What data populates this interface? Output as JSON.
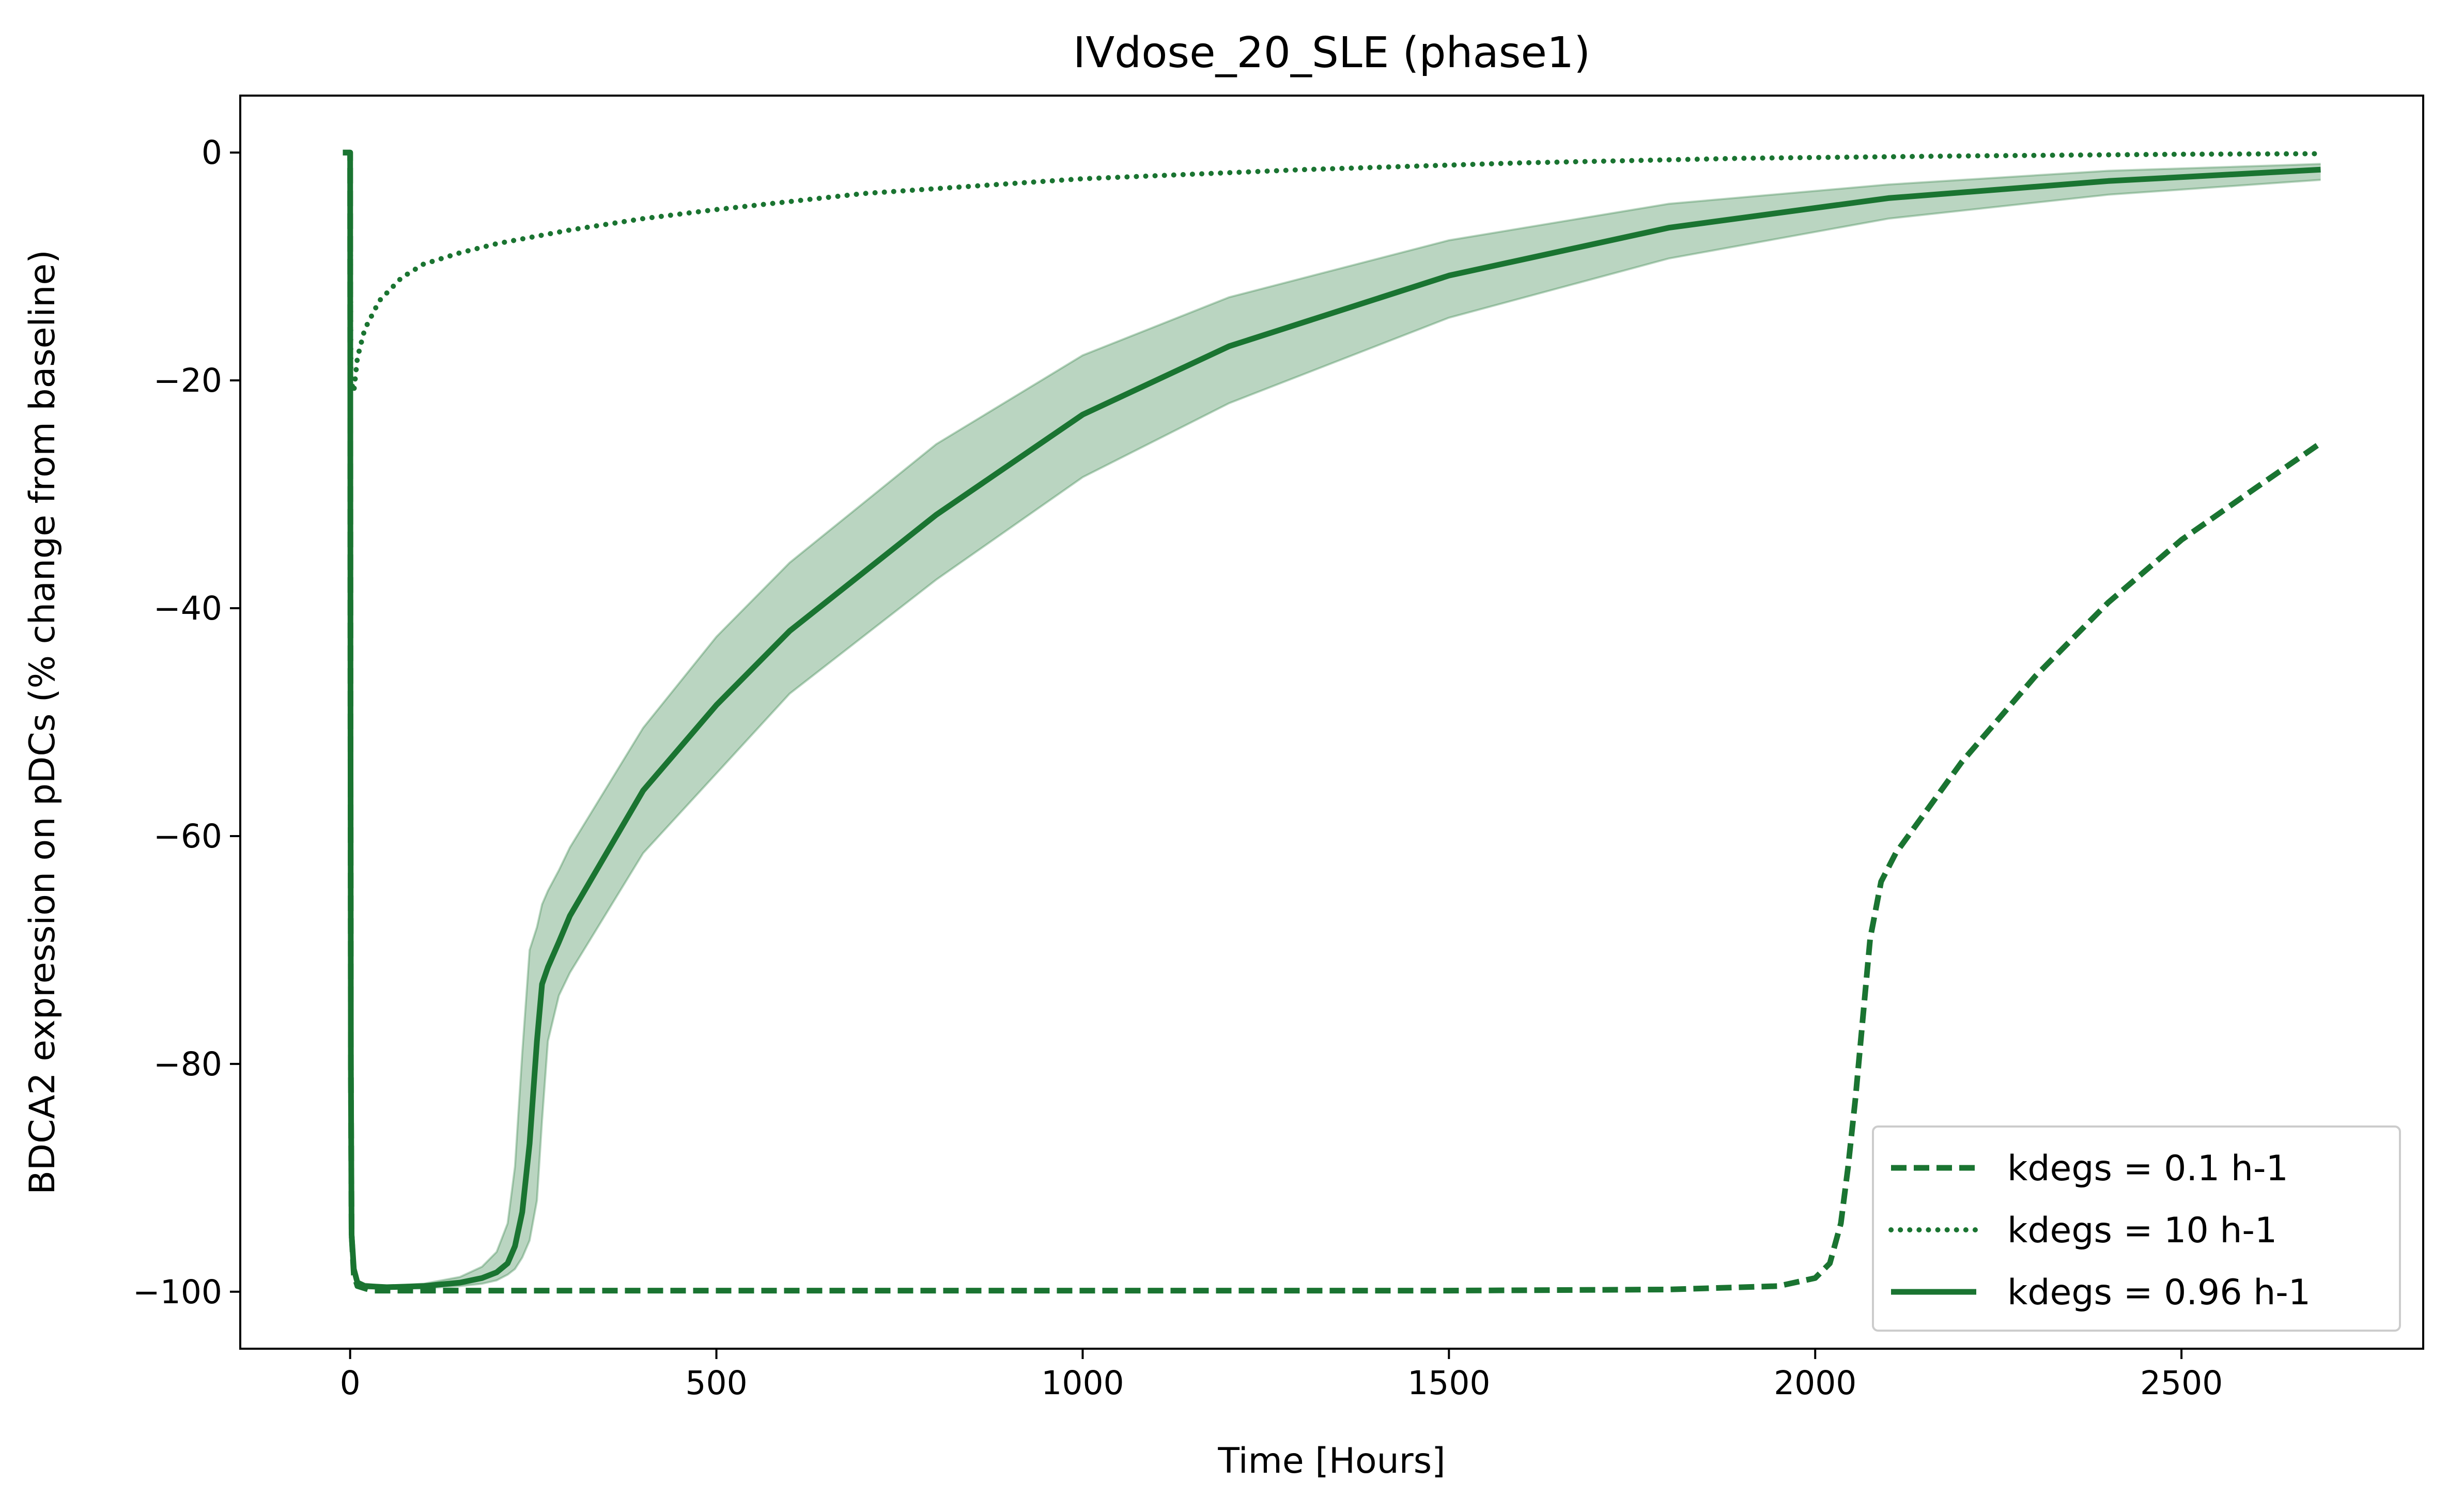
{
  "chart_data": {
    "type": "line",
    "title": "IVdose_20_SLE (phase1)",
    "xlabel": "Time [Hours]",
    "ylabel": "BDCA2 expression on pDCs (% change from baseline)",
    "xlim": [
      -150,
      2830
    ],
    "ylim": [
      -105,
      5
    ],
    "xticks": [
      0,
      500,
      1000,
      1500,
      2000,
      2500
    ],
    "yticks": [
      0,
      -20,
      -40,
      -60,
      -80,
      -100
    ],
    "xtick_labels": [
      "0",
      "500",
      "1000",
      "1500",
      "2000",
      "2500"
    ],
    "ytick_labels": [
      "0",
      "−20",
      "−40",
      "−60",
      "−80",
      "−100"
    ],
    "legend_position": "lower-right",
    "color": "#1a7431",
    "series": [
      {
        "name": "kdegs = 0.1 h-1",
        "style": "dashed",
        "x": [
          -10,
          0,
          0.5,
          1,
          2,
          5,
          10,
          30,
          100,
          500,
          1000,
          1500,
          1800,
          1950,
          2000,
          2020,
          2035,
          2045,
          2055,
          2065,
          2075,
          2090,
          2110,
          2200,
          2300,
          2400,
          2500,
          2600,
          2690
        ],
        "y": [
          0,
          0,
          -50,
          -80,
          -95,
          -98.5,
          -99.5,
          -99.9,
          -99.9,
          -99.9,
          -99.9,
          -99.9,
          -99.8,
          -99.5,
          -98.8,
          -97.5,
          -94,
          -89,
          -83,
          -76,
          -69,
          -64,
          -61.5,
          -53.5,
          -46,
          -39.5,
          -34,
          -29.5,
          -25.5
        ]
      },
      {
        "name": "kdegs = 10 h-1",
        "style": "dotted",
        "x": [
          0,
          0.5,
          1,
          5,
          10,
          20,
          40,
          70,
          100,
          150,
          200,
          300,
          400,
          500,
          700,
          1000,
          1300,
          1600,
          1900,
          2200,
          2500,
          2690
        ],
        "y": [
          0,
          -10,
          -20,
          -21,
          -18,
          -15.5,
          -13,
          -11,
          -9.8,
          -8.8,
          -8,
          -6.8,
          -5.8,
          -5,
          -3.6,
          -2.3,
          -1.5,
          -0.9,
          -0.5,
          -0.3,
          -0.15,
          -0.1
        ]
      },
      {
        "name": "kdegs = 0.96 h-1",
        "style": "solid",
        "x": [
          -10,
          0,
          0.5,
          1,
          2,
          5,
          10,
          20,
          50,
          100,
          150,
          180,
          200,
          215,
          225,
          235,
          245,
          255,
          262,
          270,
          285,
          300,
          400,
          500,
          600,
          800,
          1000,
          1200,
          1500,
          1800,
          2100,
          2400,
          2690
        ],
        "y": [
          0,
          0,
          -50,
          -80,
          -95,
          -98,
          -99.2,
          -99.5,
          -99.6,
          -99.5,
          -99.2,
          -98.8,
          -98.3,
          -97.5,
          -96,
          -93,
          -87,
          -78,
          -73,
          -71.5,
          -69.3,
          -67,
          -56,
          -48.5,
          -42,
          -31.8,
          -23,
          -17,
          -10.8,
          -6.6,
          -4,
          -2.5,
          -1.5
        ]
      }
    ],
    "band": {
      "series": "kdegs = 0.96 h-1",
      "x": [
        -10,
        0,
        0.5,
        1,
        2,
        5,
        10,
        20,
        50,
        100,
        150,
        180,
        200,
        215,
        225,
        235,
        245,
        255,
        262,
        270,
        285,
        300,
        400,
        500,
        600,
        800,
        1000,
        1200,
        1500,
        1800,
        2100,
        2400,
        2690
      ],
      "upper": [
        0,
        0,
        -50,
        -80,
        -95,
        -97.8,
        -99.0,
        -99.3,
        -99.5,
        -99.3,
        -98.7,
        -97.8,
        -96.5,
        -94,
        -89,
        -79,
        -70,
        -68,
        -66,
        -64.8,
        -63,
        -61,
        -50.5,
        -42.5,
        -36,
        -25.6,
        -17.8,
        -12.7,
        -7.7,
        -4.5,
        -2.8,
        -1.6,
        -1
      ],
      "lower": [
        0,
        0,
        -50,
        -80,
        -95,
        -98.2,
        -99.4,
        -99.7,
        -99.7,
        -99.7,
        -99.5,
        -99.3,
        -99.0,
        -98.5,
        -98,
        -97,
        -95.5,
        -92,
        -85,
        -78,
        -74,
        -72,
        -61.5,
        -54.5,
        -47.5,
        -37.5,
        -28.5,
        -22,
        -14.5,
        -9.3,
        -5.8,
        -3.7,
        -2.4
      ]
    }
  }
}
